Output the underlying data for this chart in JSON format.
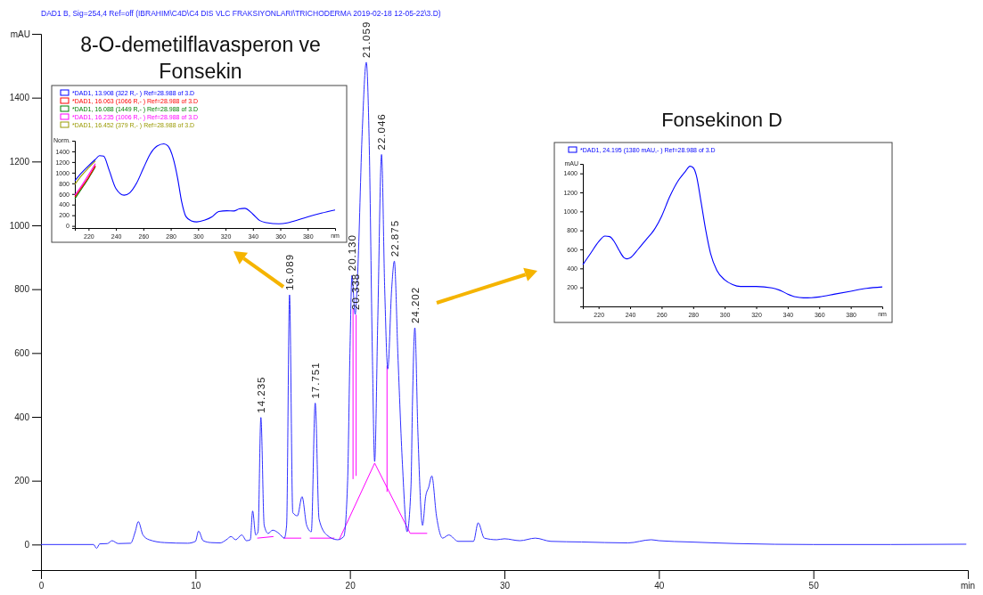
{
  "chart_data": [
    {
      "type": "line",
      "title": "DAD1 B, Sig=254,4 Ref=off (IBRAHIM\\C4D\\C4 DIS VLC FRAKSIYONLARI\\TRICHODERMA 2019-02-18 12-05-22\\3.D)",
      "xlim": [
        0,
        60
      ],
      "xlabel": "min",
      "ylabel": "mAU",
      "ylim": [
        -80,
        1600
      ],
      "xticks": [
        0,
        10,
        20,
        30,
        40,
        50
      ],
      "yticks": [
        0,
        200,
        400,
        600,
        800,
        1000,
        1200,
        1400
      ],
      "grid": false,
      "legend": false,
      "marker": "none",
      "series": [
        {
          "color": "#3030ff",
          "x": [
            0,
            3.4,
            3.6,
            3.8,
            4.3,
            4.6,
            5.0,
            5.8,
            6.1,
            6.3,
            6.6,
            7.0,
            8.0,
            9.5,
            10.0,
            10.2,
            10.5,
            11.0,
            11.6,
            12.0,
            12.3,
            12.6,
            13.0,
            13.3,
            13.55,
            13.7,
            13.9,
            14.05,
            14.235,
            14.45,
            14.7,
            15.0,
            15.4,
            15.75,
            15.9,
            16.089,
            16.3,
            16.6,
            16.9,
            17.2,
            17.5,
            17.751,
            18.0,
            18.5,
            19.2,
            19.6,
            19.85,
            20.0,
            20.13,
            20.338,
            20.5,
            20.8,
            21.059,
            21.25,
            21.45,
            21.6,
            21.8,
            22.046,
            22.25,
            22.45,
            22.7,
            22.875,
            23.1,
            23.4,
            23.7,
            23.95,
            24.05,
            24.202,
            24.4,
            24.7,
            24.9,
            25.1,
            25.3,
            25.6,
            26.0,
            26.4,
            27.0,
            28.0,
            28.3,
            28.7,
            29.5,
            30.0,
            31.0,
            32.0,
            33.0,
            35.0,
            38.0,
            39.5,
            40.0,
            42.0,
            45.0,
            50.0,
            55.0,
            59.9
          ],
          "values": [
            0,
            0,
            -12,
            2,
            3,
            12,
            3,
            4,
            40,
            72,
            30,
            15,
            6,
            4,
            10,
            42,
            12,
            6,
            5,
            15,
            25,
            15,
            30,
            12,
            15,
            105,
            30,
            40,
            398,
            60,
            35,
            45,
            35,
            20,
            60,
            782,
            100,
            90,
            150,
            60,
            40,
            443,
            80,
            30,
            15,
            25,
            200,
            600,
            843,
            721,
            850,
            1300,
            1511,
            1250,
            600,
            260,
            700,
            1222,
            800,
            550,
            800,
            888,
            600,
            250,
            40,
            180,
            450,
            679,
            350,
            60,
            150,
            180,
            215,
            90,
            20,
            30,
            10,
            10,
            68,
            20,
            15,
            18,
            12,
            20,
            10,
            8,
            5,
            15,
            12,
            8,
            3,
            0,
            0,
            1
          ]
        },
        {
          "color": "#ff00ff",
          "x": [
            14.0,
            15.05
          ],
          "values": [
            20,
            25
          ]
        },
        {
          "color": "#ff00ff",
          "x": [
            15.7,
            16.85
          ],
          "values": [
            20,
            20
          ]
        },
        {
          "color": "#ff00ff",
          "x": [
            17.4,
            19.0
          ],
          "values": [
            20,
            20
          ]
        },
        {
          "color": "#ff00ff",
          "x": [
            19.3,
            21.6,
            23.9
          ],
          "values": [
            15,
            255,
            35
          ]
        },
        {
          "color": "#ff00ff",
          "x": [
            23.9,
            25.0
          ],
          "values": [
            35,
            35
          ]
        },
        {
          "color": "#ff00ff",
          "x": [
            20.2,
            20.2
          ],
          "values": [
            205,
            740
          ]
        },
        {
          "color": "#ff00ff",
          "x": [
            20.4,
            20.4
          ],
          "values": [
            215,
            720
          ]
        },
        {
          "color": "#ff00ff",
          "x": [
            22.4,
            22.4
          ],
          "values": [
            165,
            560
          ]
        }
      ],
      "annotations": [
        {
          "text": "14.235",
          "x": 14.235,
          "y": 398
        },
        {
          "text": "16.089",
          "x": 16.089,
          "y": 782
        },
        {
          "text": "17.751",
          "x": 17.751,
          "y": 443
        },
        {
          "text": "20.130",
          "x": 20.13,
          "y": 843
        },
        {
          "text": "20.338",
          "x": 20.338,
          "y": 721
        },
        {
          "text": "21.059",
          "x": 21.059,
          "y": 1511
        },
        {
          "text": "22.046",
          "x": 22.046,
          "y": 1222
        },
        {
          "text": "22.875",
          "x": 22.875,
          "y": 888
        },
        {
          "text": "24.202",
          "x": 24.202,
          "y": 679
        }
      ]
    },
    {
      "type": "line",
      "title": "8-O-demetilflavasperon ve Fonsekin",
      "xlabel": "nm",
      "ylabel": "Norm.",
      "xlim": [
        210,
        400
      ],
      "ylim": [
        -40,
        1600
      ],
      "xticks": [
        220,
        240,
        260,
        280,
        300,
        320,
        340,
        360,
        380
      ],
      "yticks": [
        0,
        200,
        400,
        600,
        800,
        1000,
        1200,
        1400
      ],
      "grid": false,
      "legend": "top left",
      "marker": "none",
      "x": [
        210,
        215,
        220,
        225,
        228,
        231,
        235,
        240,
        246,
        250,
        255,
        260,
        265,
        270,
        275,
        278,
        282,
        285,
        288,
        291,
        295,
        299,
        305,
        310,
        315,
        321,
        326,
        330,
        334,
        340,
        345,
        350,
        359,
        365,
        370,
        380,
        390,
        400
      ],
      "series": [
        {
          "name": "*DAD1, 13.908 (322 R,- ) Ref=28.988 of 3.D",
          "color": "#0000ff",
          "values": [
            850,
            1000,
            1130,
            1250,
            1320,
            1310,
            1050,
            700,
            577,
            620,
            800,
            1080,
            1350,
            1500,
            1542,
            1500,
            1250,
            900,
            450,
            180,
            95,
            75,
            110,
            170,
            270,
            285,
            280,
            320,
            330,
            220,
            100,
            60,
            40,
            55,
            90,
            170,
            240,
            300
          ]
        },
        {
          "name": "*DAD1, 16.063 (1066 R,- ) Ref=28.988 of 3.D",
          "color": "#ff0000",
          "values": [
            545,
            725,
            915,
            1130,
            null,
            null,
            null,
            null,
            null,
            null,
            null,
            null,
            null,
            null,
            null,
            null,
            null,
            null,
            null,
            null,
            null,
            null,
            null,
            null,
            null,
            null,
            null,
            null,
            null,
            null,
            null,
            null,
            null,
            null,
            null,
            null,
            null,
            null
          ]
        },
        {
          "name": "*DAD1, 16.088 (1449 R,- ) Ref=28.988 of 3.D",
          "color": "#008000",
          "values": [
            510,
            700,
            895,
            1110,
            null,
            null,
            null,
            null,
            null,
            null,
            null,
            null,
            null,
            null,
            null,
            null,
            null,
            null,
            null,
            null,
            null,
            null,
            null,
            null,
            null,
            null,
            null,
            null,
            null,
            null,
            null,
            null,
            null,
            null,
            null,
            null,
            null,
            null
          ]
        },
        {
          "name": "*DAD1, 16.235 (1006 R,- ) Ref=28.988 of 3.D",
          "color": "#ff00ff",
          "values": [
            580,
            760,
            960,
            1170,
            null,
            null,
            null,
            null,
            null,
            null,
            null,
            null,
            null,
            null,
            null,
            null,
            null,
            null,
            null,
            null,
            null,
            null,
            null,
            null,
            null,
            null,
            null,
            null,
            null,
            null,
            null,
            null,
            null,
            null,
            null,
            null,
            null,
            null
          ]
        },
        {
          "name": "*DAD1, 16.452 (379 R,- ) Ref=28.988 of 3.D",
          "color": "#999900",
          "values": [
            780,
            950,
            1090,
            1220,
            null,
            null,
            null,
            null,
            null,
            null,
            null,
            null,
            null,
            null,
            null,
            null,
            null,
            null,
            null,
            null,
            null,
            null,
            null,
            null,
            null,
            null,
            null,
            null,
            null,
            null,
            null,
            null,
            null,
            null,
            null,
            null,
            null,
            null
          ]
        }
      ]
    },
    {
      "type": "line",
      "title": "Fonsekinon D",
      "xlabel": "nm",
      "ylabel": "mAU",
      "xlim": [
        210,
        400
      ],
      "ylim": [
        0,
        1500
      ],
      "xticks": [
        220,
        240,
        260,
        280,
        300,
        320,
        340,
        360,
        380
      ],
      "yticks": [
        200,
        400,
        600,
        800,
        1000,
        1200,
        1400
      ],
      "grid": false,
      "legend": "top left",
      "marker": "none",
      "x": [
        210,
        215,
        220,
        224,
        227,
        230,
        233,
        236,
        238,
        240,
        245,
        250,
        255,
        260,
        265,
        270,
        275,
        278,
        280,
        282,
        285,
        288,
        291,
        295,
        300,
        305,
        310,
        320,
        330,
        335,
        340,
        345,
        350,
        355,
        360,
        370,
        380,
        390,
        400
      ],
      "series": [
        {
          "name": "*DAD1, 24.195 (1380 mAU,- ) Ref=28.988 of 3.D",
          "color": "#0000ff",
          "values": [
            440,
            560,
            680,
            740,
            735,
            680,
            590,
            515,
            500,
            510,
            600,
            700,
            800,
            950,
            1150,
            1310,
            1420,
            1475,
            1460,
            1380,
            1100,
            800,
            560,
            380,
            280,
            230,
            210,
            210,
            195,
            170,
            130,
            100,
            90,
            92,
            100,
            130,
            160,
            190,
            205
          ]
        }
      ]
    }
  ]
}
